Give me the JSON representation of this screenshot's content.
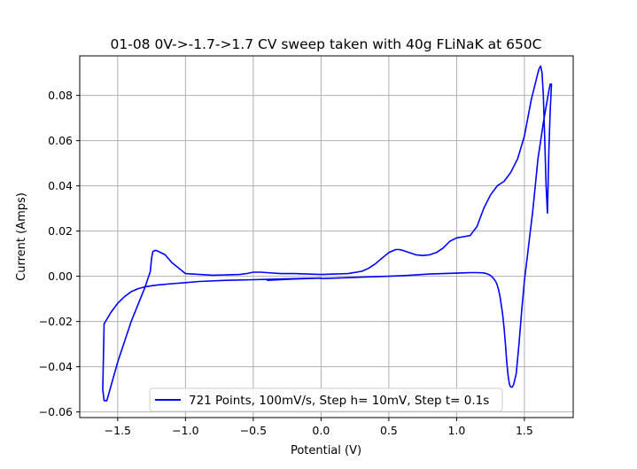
{
  "chart_data": {
    "type": "line",
    "title": "01-08 0V->-1.7->1.7 CV sweep taken with 40g FLiNaK at 650C",
    "xlabel": "Potential (V)",
    "ylabel": "Current (Amps)",
    "xlim": [
      -1.78,
      1.86
    ],
    "ylim": [
      -0.0625,
      0.0975
    ],
    "x_ticks": [
      -1.5,
      -1.0,
      -0.5,
      0.0,
      0.5,
      1.0,
      1.5
    ],
    "x_tick_labels": [
      "−1.5",
      "−1.0",
      "−0.5",
      "0.0",
      "0.5",
      "1.0",
      "1.5"
    ],
    "y_ticks": [
      -0.06,
      -0.04,
      -0.02,
      0.0,
      0.02,
      0.04,
      0.06,
      0.08
    ],
    "y_tick_labels": [
      "−0.06",
      "−0.04",
      "−0.02",
      "0.00",
      "0.02",
      "0.04",
      "0.06",
      "0.08"
    ],
    "grid": true,
    "legend_position": "lower-center",
    "series": [
      {
        "name": "721 Points, 100mV/s, Step h= 10mV, Step t= 0.1s",
        "color": "#0000ff",
        "x": [
          -0.4,
          -0.3,
          -0.2,
          -0.1,
          0.0,
          -0.1,
          -0.3,
          -0.5,
          -0.7,
          -0.9,
          -1.0,
          -1.1,
          -1.2,
          -1.25,
          -1.26,
          -1.27,
          -1.3,
          -1.35,
          -1.4,
          -1.45,
          -1.5,
          -1.55,
          -1.58,
          -1.6,
          -1.61,
          -1.6,
          -1.58,
          -1.5,
          -1.4,
          -1.3,
          -1.26,
          -1.25,
          -1.24,
          -1.22,
          -1.2,
          -1.15,
          -1.1,
          -1.0,
          -0.8,
          -0.6,
          -0.55,
          -0.5,
          -0.45,
          -0.4,
          -0.3,
          -0.2,
          -0.1,
          0.0,
          0.1,
          0.2,
          0.3,
          0.35,
          0.4,
          0.45,
          0.5,
          0.55,
          0.58,
          0.6,
          0.65,
          0.7,
          0.75,
          0.8,
          0.85,
          0.9,
          0.95,
          1.0,
          1.05,
          1.1,
          1.15,
          1.2,
          1.25,
          1.3,
          1.35,
          1.4,
          1.45,
          1.5,
          1.55,
          1.6,
          1.61,
          1.62,
          1.63,
          1.64,
          1.65,
          1.66,
          1.67,
          1.68,
          1.69,
          1.7,
          1.69,
          1.68,
          1.66,
          1.64,
          1.62,
          1.6,
          1.58,
          1.56,
          1.54,
          1.52,
          1.5,
          1.48,
          1.46,
          1.44,
          1.42,
          1.41,
          1.4,
          1.39,
          1.38,
          1.37,
          1.36,
          1.35,
          1.34,
          1.33,
          1.32,
          1.31,
          1.3,
          1.29,
          1.28,
          1.27,
          1.26,
          1.25,
          1.24,
          1.22,
          1.2,
          1.15,
          1.1,
          1.05,
          1.0,
          0.95,
          0.9,
          0.8,
          0.75,
          0.7,
          0.6,
          0.5,
          0.4,
          0.3,
          0.2,
          0.1,
          0.0
        ],
        "y": [
          -0.0018,
          -0.0015,
          -0.0012,
          -0.001,
          -0.0008,
          -0.0009,
          -0.0012,
          -0.0015,
          -0.0018,
          -0.0023,
          -0.0028,
          -0.0033,
          -0.0038,
          -0.0042,
          -0.0043,
          -0.0044,
          -0.0047,
          -0.0055,
          -0.0068,
          -0.009,
          -0.012,
          -0.016,
          -0.019,
          -0.021,
          -0.05,
          -0.055,
          -0.055,
          -0.038,
          -0.02,
          -0.005,
          0.002,
          0.008,
          0.011,
          0.0115,
          0.011,
          0.0095,
          0.006,
          0.0012,
          0.0005,
          0.0008,
          0.0012,
          0.0018,
          0.0018,
          0.0016,
          0.0012,
          0.0012,
          0.001,
          0.0008,
          0.001,
          0.0012,
          0.0022,
          0.0035,
          0.0055,
          0.008,
          0.0105,
          0.0118,
          0.0118,
          0.0115,
          0.0105,
          0.0095,
          0.0092,
          0.0095,
          0.0105,
          0.0125,
          0.0155,
          0.017,
          0.0175,
          0.018,
          0.022,
          0.03,
          0.036,
          0.04,
          0.042,
          0.046,
          0.052,
          0.062,
          0.078,
          0.09,
          0.092,
          0.093,
          0.09,
          0.08,
          0.06,
          0.04,
          0.028,
          0.055,
          0.073,
          0.085,
          0.085,
          0.082,
          0.075,
          0.068,
          0.06,
          0.052,
          0.04,
          0.028,
          0.018,
          0.008,
          -0.002,
          -0.015,
          -0.03,
          -0.043,
          -0.048,
          -0.049,
          -0.049,
          -0.048,
          -0.044,
          -0.038,
          -0.03,
          -0.023,
          -0.017,
          -0.013,
          -0.009,
          -0.006,
          -0.004,
          -0.0025,
          -0.0015,
          -0.0008,
          -0.0002,
          0.0003,
          0.0007,
          0.0012,
          0.0015,
          0.0016,
          0.0016,
          0.0015,
          0.0014,
          0.0013,
          0.0012,
          0.001,
          0.0008,
          0.0006,
          0.0003,
          0.0,
          -0.0002,
          -0.0004,
          -0.0006,
          -0.0008,
          -0.001
        ]
      }
    ]
  }
}
